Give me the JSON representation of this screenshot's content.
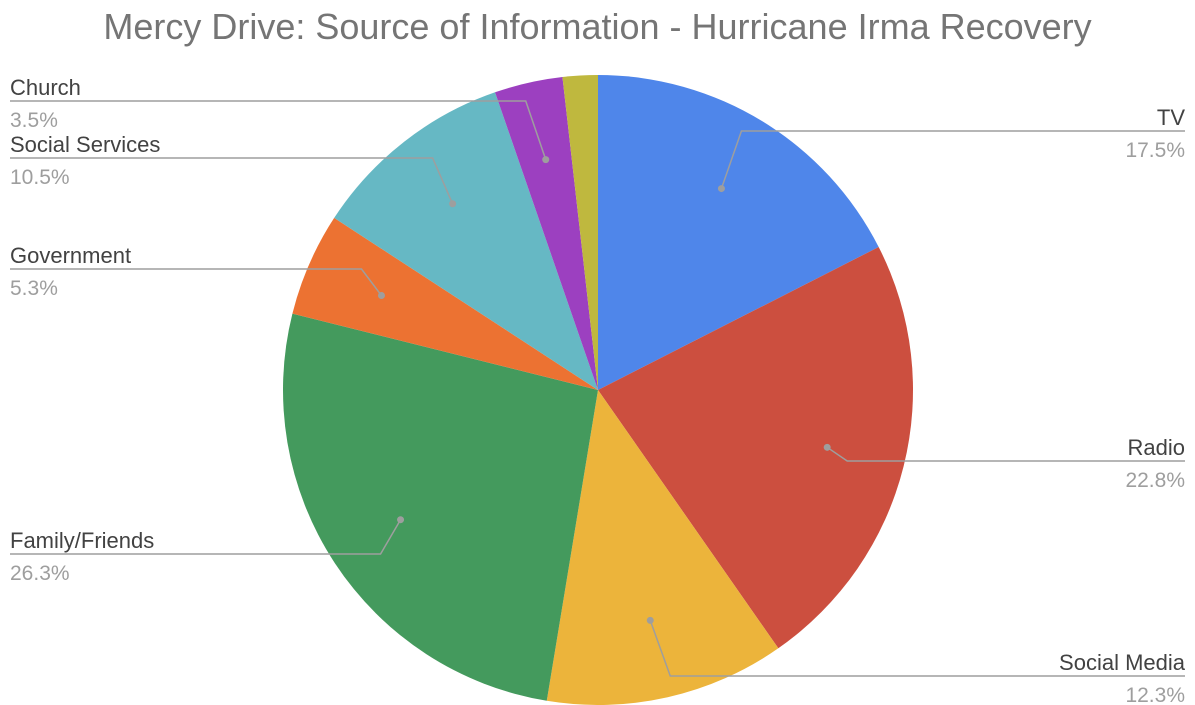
{
  "chart_data": {
    "type": "pie",
    "title": "Mercy Drive: Source of Information - Hurricane Irma Recovery",
    "slices": [
      {
        "label": "TV",
        "value": 17.5,
        "percent_label": "17.5%",
        "color": "#4F86EA"
      },
      {
        "label": "Radio",
        "value": 22.8,
        "percent_label": "22.8%",
        "color": "#CC4F3F"
      },
      {
        "label": "Social Media",
        "value": 12.3,
        "percent_label": "12.3%",
        "color": "#ECB43B"
      },
      {
        "label": "Family/Friends",
        "value": 26.3,
        "percent_label": "26.3%",
        "color": "#449A5D"
      },
      {
        "label": "Government",
        "value": 5.3,
        "percent_label": "5.3%",
        "color": "#EC7232"
      },
      {
        "label": "Social Services",
        "value": 10.5,
        "percent_label": "10.5%",
        "color": "#66B8C4"
      },
      {
        "label": "Church",
        "value": 3.5,
        "percent_label": "3.5%",
        "color": "#9C40C0"
      },
      {
        "label": "",
        "value": 1.8,
        "percent_label": "",
        "color": "#BFB83E"
      }
    ],
    "legend_placement": "callout labels around pie",
    "start_angle": "12 o'clock, clockwise"
  }
}
